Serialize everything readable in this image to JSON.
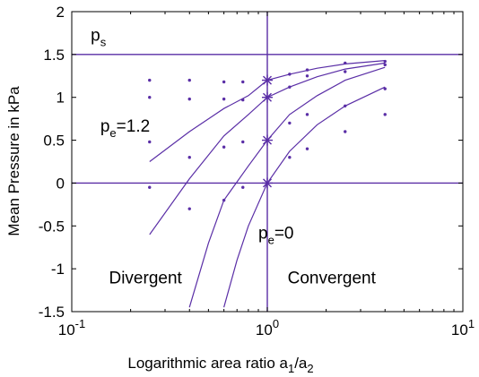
{
  "chart_data": {
    "type": "line",
    "title": "",
    "xlabel": "Logarithmic area ratio a1/a2",
    "ylabel": "Mean Pressure in kPa",
    "xscale": "log",
    "xlim": [
      0.1,
      10
    ],
    "ylim": [
      -1.5,
      2
    ],
    "grid": false,
    "x_ticks": [
      {
        "value": 0.1,
        "base": "10",
        "exp": "-1"
      },
      {
        "value": 1,
        "base": "10",
        "exp": "0"
      },
      {
        "value": 10,
        "base": "10",
        "exp": "1"
      }
    ],
    "y_ticks": [
      {
        "value": -1.5,
        "label": "-1.5"
      },
      {
        "value": -1,
        "label": "-1"
      },
      {
        "value": -0.5,
        "label": "-0.5"
      },
      {
        "value": 0,
        "label": "0"
      },
      {
        "value": 0.5,
        "label": "0.5"
      },
      {
        "value": 1,
        "label": "1"
      },
      {
        "value": 1.5,
        "label": "1.5"
      },
      {
        "value": 2,
        "label": "2"
      }
    ],
    "reference_lines": [
      {
        "orientation": "horizontal",
        "value": 1.5
      },
      {
        "orientation": "horizontal",
        "value": 0
      },
      {
        "orientation": "vertical",
        "value": 1
      }
    ],
    "series": [
      {
        "x": [
          0.25,
          0.4,
          0.6,
          0.8,
          1.0,
          1.3,
          1.8,
          2.5,
          4.0
        ],
        "y": [
          0.25,
          0.6,
          0.87,
          1.02,
          1.2,
          1.27,
          1.34,
          1.39,
          1.43
        ]
      },
      {
        "x": [
          0.25,
          0.4,
          0.6,
          0.8,
          1.0,
          1.3,
          1.8,
          2.5,
          4.0
        ],
        "y": [
          -0.6,
          0.05,
          0.55,
          0.8,
          1.0,
          1.12,
          1.24,
          1.33,
          1.4
        ]
      },
      {
        "x": [
          0.4,
          0.5,
          0.6,
          0.8,
          1.0,
          1.3,
          1.8,
          2.5,
          4.0
        ],
        "y": [
          -1.45,
          -0.7,
          -0.2,
          0.2,
          0.5,
          0.8,
          1.02,
          1.2,
          1.35
        ]
      },
      {
        "x": [
          0.6,
          0.7,
          0.8,
          1.0,
          1.3,
          1.8,
          2.5,
          4.0
        ],
        "y": [
          -1.45,
          -0.9,
          -0.5,
          0.0,
          0.37,
          0.68,
          0.9,
          1.12
        ]
      }
    ],
    "markers": [
      {
        "x": 1,
        "y": 1.2
      },
      {
        "x": 1,
        "y": 1.0
      },
      {
        "x": 1,
        "y": 0.5
      },
      {
        "x": 1,
        "y": 0.0
      }
    ],
    "scatter_points": [
      {
        "x": 0.25,
        "y": 1.2
      },
      {
        "x": 0.25,
        "y": 1.0
      },
      {
        "x": 0.25,
        "y": 0.48
      },
      {
        "x": 0.25,
        "y": -0.05
      },
      {
        "x": 0.4,
        "y": 1.2
      },
      {
        "x": 0.4,
        "y": 0.98
      },
      {
        "x": 0.4,
        "y": 0.3
      },
      {
        "x": 0.4,
        "y": -0.3
      },
      {
        "x": 0.6,
        "y": 1.18
      },
      {
        "x": 0.6,
        "y": 0.98
      },
      {
        "x": 0.6,
        "y": 0.42
      },
      {
        "x": 0.6,
        "y": -0.2
      },
      {
        "x": 0.75,
        "y": 1.18
      },
      {
        "x": 0.75,
        "y": 0.97
      },
      {
        "x": 0.75,
        "y": 0.48
      },
      {
        "x": 0.75,
        "y": -0.05
      },
      {
        "x": 1.3,
        "y": 1.27
      },
      {
        "x": 1.3,
        "y": 1.12
      },
      {
        "x": 1.3,
        "y": 0.7
      },
      {
        "x": 1.3,
        "y": 0.3
      },
      {
        "x": 1.6,
        "y": 1.32
      },
      {
        "x": 1.6,
        "y": 1.25
      },
      {
        "x": 1.6,
        "y": 0.8
      },
      {
        "x": 1.6,
        "y": 0.4
      },
      {
        "x": 2.5,
        "y": 1.4
      },
      {
        "x": 2.5,
        "y": 1.3
      },
      {
        "x": 2.5,
        "y": 0.9
      },
      {
        "x": 2.5,
        "y": 0.6
      },
      {
        "x": 4.0,
        "y": 1.42
      },
      {
        "x": 4.0,
        "y": 1.38
      },
      {
        "x": 4.0,
        "y": 1.1
      },
      {
        "x": 4.0,
        "y": 0.8
      }
    ],
    "annotations": [
      {
        "id": "ps",
        "base": "p",
        "sub": "s",
        "suffix": "",
        "x": 0.125,
        "y": 1.66
      },
      {
        "id": "pe12",
        "base": "p",
        "sub": "e",
        "suffix": "=1.2",
        "x": 0.14,
        "y": 0.6
      },
      {
        "id": "pe0",
        "base": "p",
        "sub": "e",
        "suffix": "=0",
        "x": 0.9,
        "y": -0.65
      },
      {
        "id": "divergent",
        "base": "Divergent",
        "sub": "",
        "suffix": "",
        "x": 0.155,
        "y": -1.17
      },
      {
        "id": "convergent",
        "base": "Convergent",
        "sub": "",
        "suffix": "",
        "x": 1.27,
        "y": -1.17
      }
    ],
    "colors": {
      "line": "#5a2ea6",
      "marker": "#5a2ea6",
      "axis": "#000000",
      "text": "#000000"
    }
  }
}
